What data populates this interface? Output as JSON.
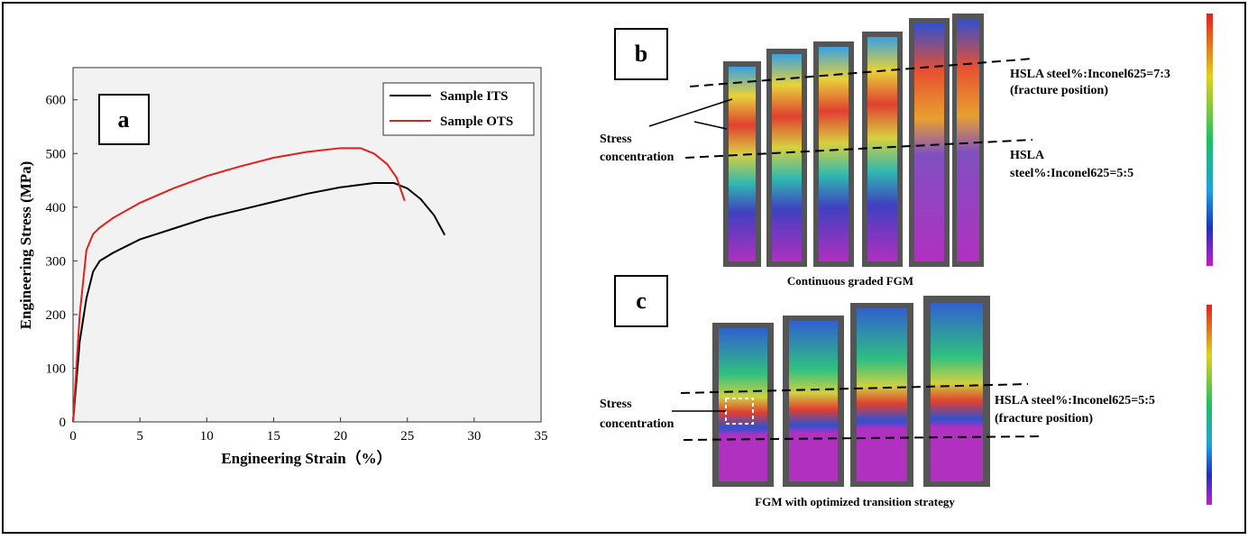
{
  "chart_data": {
    "type": "line",
    "panel_label": "a",
    "xlabel": "Engineering Strain（%）",
    "ylabel": "Engineering Stress (MPa)",
    "xlim": [
      0,
      35
    ],
    "ylim": [
      0,
      660
    ],
    "xticks": [
      0,
      5,
      10,
      15,
      20,
      25,
      30,
      35
    ],
    "yticks": [
      0,
      100,
      200,
      300,
      400,
      500,
      600
    ],
    "legend": "upper right",
    "series": [
      {
        "name": "Sample ITS",
        "color": "#000000",
        "x": [
          0,
          0.5,
          1,
          1.5,
          2,
          3,
          5,
          7.5,
          10,
          12.5,
          15,
          17.5,
          20,
          22.5,
          24,
          25,
          26,
          27,
          27.8
        ],
        "values": [
          0,
          150,
          230,
          280,
          300,
          315,
          340,
          360,
          380,
          395,
          410,
          425,
          437,
          445,
          445,
          435,
          415,
          385,
          348
        ]
      },
      {
        "name": "Sample OTS",
        "color": "#e0201b",
        "x": [
          0,
          0.5,
          1,
          1.5,
          2,
          3,
          5,
          7.5,
          10,
          12.5,
          15,
          17.5,
          20,
          21.5,
          22.5,
          23.5,
          24.2,
          24.8
        ],
        "values": [
          0,
          200,
          320,
          350,
          362,
          380,
          408,
          435,
          458,
          476,
          492,
          503,
          510,
          510,
          500,
          480,
          455,
          412
        ]
      }
    ]
  },
  "panel_b": {
    "label": "b",
    "top_note": [
      "HSLA steel%:Inconel625=7:3",
      "(fracture position)"
    ],
    "bottom_note": [
      "HSLA",
      "steel%:Inconel625=5:5"
    ],
    "stress": [
      "Stress",
      "concentration"
    ],
    "caption": "Continuous graded FGM"
  },
  "panel_c": {
    "label": "c",
    "note": [
      "HSLA steel%:Inconel625=5:5",
      "(fracture position)"
    ],
    "stress": [
      "Stress",
      "concentration"
    ],
    "caption": "FGM with optimized transition strategy"
  }
}
